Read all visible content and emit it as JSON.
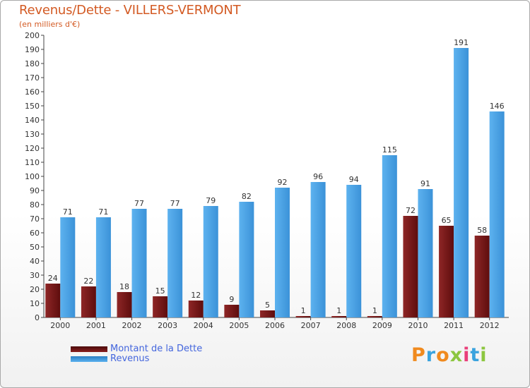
{
  "chart_data": {
    "type": "bar",
    "title": "Revenus/Dette - VILLERS-VERMONT",
    "ylabel": "(en milliers d'€)",
    "xlabel": "",
    "categories": [
      "2000",
      "2001",
      "2002",
      "2003",
      "2004",
      "2005",
      "2006",
      "2007",
      "2008",
      "2009",
      "2010",
      "2011",
      "2012"
    ],
    "series": [
      {
        "name": "Montant de la Dette",
        "color": "#7a1414",
        "values": [
          24,
          22,
          18,
          15,
          12,
          9,
          5,
          1,
          1,
          1,
          72,
          65,
          58
        ]
      },
      {
        "name": "Revenus",
        "color": "#4ba3e6",
        "values": [
          71,
          71,
          77,
          77,
          79,
          82,
          92,
          96,
          94,
          115,
          91,
          191,
          146
        ]
      }
    ],
    "ylim": [
      0,
      200
    ],
    "ytick_step": 10,
    "grid": false,
    "legend": "bottom-left"
  },
  "logo": {
    "text": "Proxiti",
    "colors": [
      "#f08a1e",
      "#3aa3de",
      "#f08a1e",
      "#8cc63f",
      "#e93f7a",
      "#3aa3de",
      "#8cc63f"
    ]
  }
}
